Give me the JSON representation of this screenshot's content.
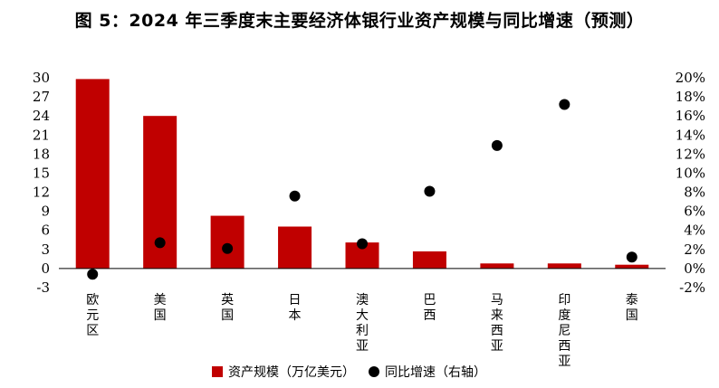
{
  "chart_data": {
    "type": "bar",
    "title": "图 5：2024 年三季度末主要经济体银行业资产规模与同比增速（预测）",
    "categories": [
      "欧元区",
      "美国",
      "英国",
      "日本",
      "澳大利亚",
      "巴西",
      "马来西亚",
      "印度尼西亚",
      "泰国"
    ],
    "series": [
      {
        "name": "资产规模（万亿美元）",
        "type": "bar",
        "axis": "left",
        "values": [
          29.8,
          24.0,
          8.3,
          6.6,
          4.1,
          2.7,
          0.8,
          0.8,
          0.6
        ]
      },
      {
        "name": "同比增速（右轴）",
        "type": "scatter",
        "axis": "right",
        "values": [
          -0.6,
          2.7,
          2.1,
          7.6,
          2.6,
          8.1,
          12.9,
          17.2,
          1.2
        ]
      }
    ],
    "left_axis": {
      "min": -3,
      "max": 30,
      "ticks": [
        "-3",
        "0",
        "3",
        "6",
        "9",
        "12",
        "15",
        "18",
        "21",
        "24",
        "27",
        "30"
      ]
    },
    "right_axis": {
      "min": -2,
      "max": 20,
      "ticks": [
        "-2%",
        "0%",
        "2%",
        "4%",
        "6%",
        "8%",
        "10%",
        "12%",
        "14%",
        "16%",
        "18%",
        "20%"
      ]
    },
    "legend_position": "bottom",
    "grid": false,
    "colors": {
      "bar": "#C00000",
      "dot": "#000000"
    }
  }
}
